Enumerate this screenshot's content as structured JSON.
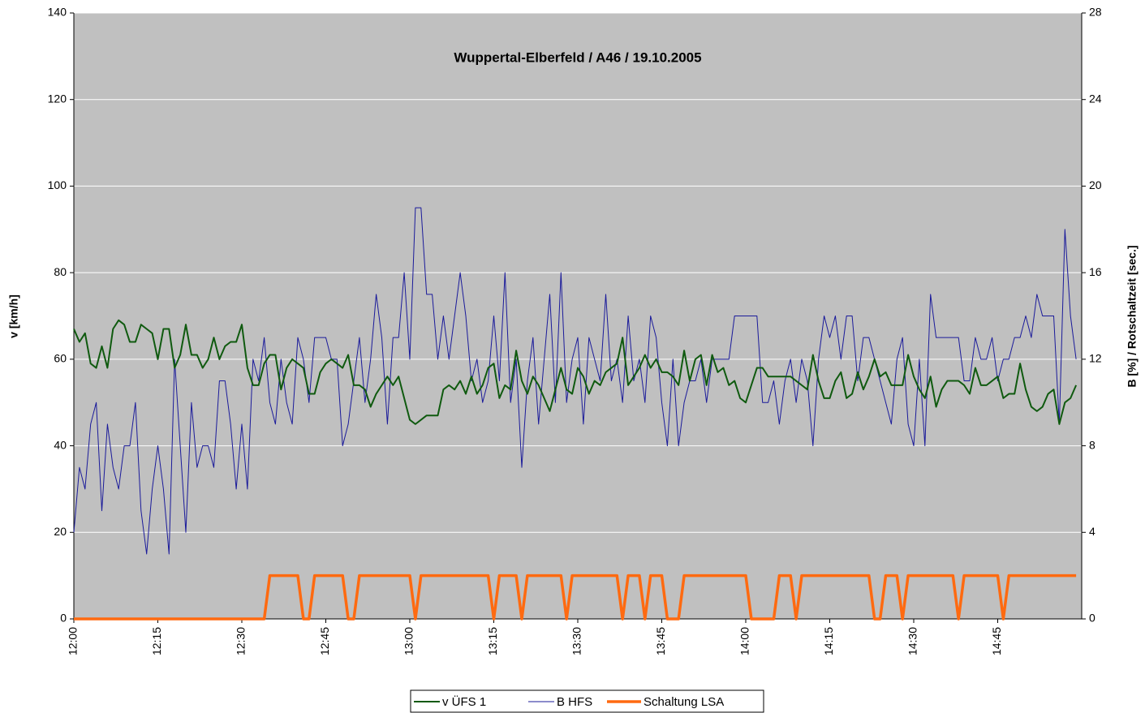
{
  "chart_data": {
    "type": "line",
    "title": "Wuppertal-Elberfeld / A46 / 19.10.2005",
    "y_label": "v [km/h]",
    "y2_label": "B [%] / Rotschaltzeit [sec.]",
    "categories": [
      "12:00",
      null,
      null,
      null,
      null,
      null,
      null,
      null,
      null,
      null,
      null,
      null,
      null,
      null,
      null,
      "12:15",
      null,
      null,
      null,
      null,
      null,
      null,
      null,
      null,
      null,
      null,
      null,
      null,
      null,
      null,
      "12:30",
      null,
      null,
      null,
      null,
      null,
      null,
      null,
      null,
      null,
      null,
      null,
      null,
      null,
      null,
      "12:45",
      null,
      null,
      null,
      null,
      null,
      null,
      null,
      null,
      null,
      null,
      null,
      null,
      null,
      null,
      "13:00",
      null,
      null,
      null,
      null,
      null,
      null,
      null,
      null,
      null,
      null,
      null,
      null,
      null,
      null,
      "13:15",
      null,
      null,
      null,
      null,
      null,
      null,
      null,
      null,
      null,
      null,
      null,
      null,
      null,
      null,
      "13:30",
      null,
      null,
      null,
      null,
      null,
      null,
      null,
      null,
      null,
      null,
      null,
      null,
      null,
      null,
      "13:45",
      null,
      null,
      null,
      null,
      null,
      null,
      null,
      null,
      null,
      null,
      null,
      null,
      null,
      null,
      "14:00",
      null,
      null,
      null,
      null,
      null,
      null,
      null,
      null,
      null,
      null,
      null,
      null,
      null,
      null,
      "14:15",
      null,
      null,
      null,
      null,
      null,
      null,
      null,
      null,
      null,
      null,
      null,
      null,
      null,
      null,
      "14:30",
      null,
      null,
      null,
      null,
      null,
      null,
      null,
      null,
      null,
      null,
      null,
      null,
      null,
      null,
      "14:45",
      null,
      null,
      null,
      null,
      null,
      null,
      null,
      null,
      null,
      null,
      null,
      null,
      null,
      null
    ],
    "series": [
      {
        "name": "v ÜFS 1",
        "color": "#0f5a0f",
        "width": 2,
        "values": [
          67,
          64,
          66,
          59,
          58,
          63,
          58,
          67,
          69,
          68,
          64,
          64,
          68,
          67,
          66,
          60,
          67,
          67,
          58,
          61,
          68,
          61,
          61,
          58,
          60,
          65,
          60,
          63,
          64,
          64,
          68,
          58,
          54,
          54,
          59,
          61,
          61,
          53,
          58,
          60,
          59,
          58,
          52,
          52,
          57,
          59,
          60,
          59,
          58,
          61,
          54,
          54,
          53,
          49,
          52,
          54,
          56,
          54,
          56,
          51,
          46,
          45,
          46,
          47,
          47,
          47,
          53,
          54,
          53,
          55,
          52,
          56,
          52,
          54,
          58,
          59,
          51,
          54,
          53,
          62,
          55,
          52,
          56,
          54,
          51,
          48,
          53,
          58,
          53,
          52,
          58,
          56,
          52,
          55,
          54,
          57,
          58,
          59,
          65,
          54,
          56,
          58,
          61,
          58,
          60,
          57,
          57,
          56,
          54,
          62,
          55,
          60,
          61,
          54,
          61,
          57,
          58,
          54,
          55,
          51,
          50,
          54,
          58,
          58,
          56,
          56,
          56,
          56,
          56,
          55,
          54,
          53,
          61,
          55,
          51,
          51,
          55,
          57,
          51,
          52,
          57,
          53,
          56,
          60,
          56,
          57,
          54,
          54,
          54,
          61,
          56,
          53,
          51,
          56,
          49,
          53,
          55,
          55,
          55,
          54,
          52,
          58,
          54,
          54,
          55,
          56,
          51,
          52,
          52,
          59,
          53,
          49,
          48,
          49,
          52,
          53,
          45,
          50,
          51,
          54
        ]
      },
      {
        "name": "B HFS",
        "color": "#1a1a9a",
        "width": 1,
        "axis": "y2",
        "values": [
          4,
          7,
          6,
          9,
          10,
          5,
          9,
          7,
          6,
          8,
          8,
          10,
          5,
          3,
          6,
          8,
          6,
          3,
          12,
          8,
          4,
          10,
          7,
          8,
          8,
          7,
          11,
          11,
          9,
          6,
          9,
          6,
          12,
          11,
          13,
          10,
          9,
          12,
          10,
          9,
          13,
          12,
          10,
          13,
          13,
          13,
          12,
          12,
          8,
          9,
          11,
          13,
          10,
          12,
          15,
          13,
          9,
          13,
          13,
          16,
          12,
          19,
          19,
          15,
          15,
          12,
          14,
          12,
          14,
          16,
          14,
          11,
          12,
          10,
          11,
          14,
          11,
          16,
          10,
          12,
          7,
          11,
          13,
          9,
          12,
          15,
          10,
          16,
          10,
          12,
          13,
          9,
          13,
          12,
          11,
          15,
          11,
          12,
          10,
          14,
          11,
          12,
          10,
          14,
          13,
          10,
          8,
          12,
          8,
          10,
          11,
          11,
          12,
          10,
          12,
          12,
          12,
          12,
          14,
          14,
          14,
          14,
          14,
          10,
          10,
          11,
          9,
          11,
          12,
          10,
          12,
          11,
          8,
          12,
          14,
          13,
          14,
          12,
          14,
          14,
          11,
          13,
          13,
          12,
          11,
          10,
          9,
          12,
          13,
          9,
          8,
          12,
          8,
          15,
          13,
          13,
          13,
          13,
          13,
          11,
          11,
          13,
          12,
          12,
          13,
          11,
          12,
          12,
          13,
          13,
          14,
          13,
          15,
          14,
          14,
          14,
          9,
          18,
          14,
          12
        ]
      },
      {
        "name": "Schaltung LSA",
        "color": "#ff6a10",
        "width": 3.5,
        "axis": "y2",
        "values": [
          0,
          0,
          0,
          0,
          0,
          0,
          0,
          0,
          0,
          0,
          0,
          0,
          0,
          0,
          0,
          0,
          0,
          0,
          0,
          0,
          0,
          0,
          0,
          0,
          0,
          0,
          0,
          0,
          0,
          0,
          0,
          0,
          0,
          0,
          0,
          2,
          2,
          2,
          2,
          2,
          2,
          0,
          0,
          2,
          2,
          2,
          2,
          2,
          2,
          0,
          0,
          2,
          2,
          2,
          2,
          2,
          2,
          2,
          2,
          2,
          2,
          0,
          2,
          2,
          2,
          2,
          2,
          2,
          2,
          2,
          2,
          2,
          2,
          2,
          2,
          0,
          2,
          2,
          2,
          2,
          0,
          2,
          2,
          2,
          2,
          2,
          2,
          2,
          0,
          2,
          2,
          2,
          2,
          2,
          2,
          2,
          2,
          2,
          0,
          2,
          2,
          2,
          0,
          2,
          2,
          2,
          0,
          0,
          0,
          2,
          2,
          2,
          2,
          2,
          2,
          2,
          2,
          2,
          2,
          2,
          2,
          0,
          0,
          0,
          0,
          0,
          2,
          2,
          2,
          0,
          2,
          2,
          2,
          2,
          2,
          2,
          2,
          2,
          2,
          2,
          2,
          2,
          2,
          0,
          0,
          2,
          2,
          2,
          0,
          2,
          2,
          2,
          2,
          2,
          2,
          2,
          2,
          2,
          0,
          2,
          2,
          2,
          2,
          2,
          2,
          2,
          0,
          2,
          2,
          2,
          2,
          2,
          2,
          2,
          2,
          2,
          2,
          2,
          2,
          2
        ]
      }
    ],
    "ylim": [
      0,
      140
    ],
    "yticks": [
      0,
      20,
      40,
      60,
      80,
      100,
      120,
      140
    ],
    "y2lim": [
      0,
      28
    ],
    "y2ticks": [
      0,
      4,
      8,
      12,
      16,
      20,
      24,
      28
    ],
    "grid": true,
    "legend": "bottom",
    "background": "#c0c0c0"
  }
}
